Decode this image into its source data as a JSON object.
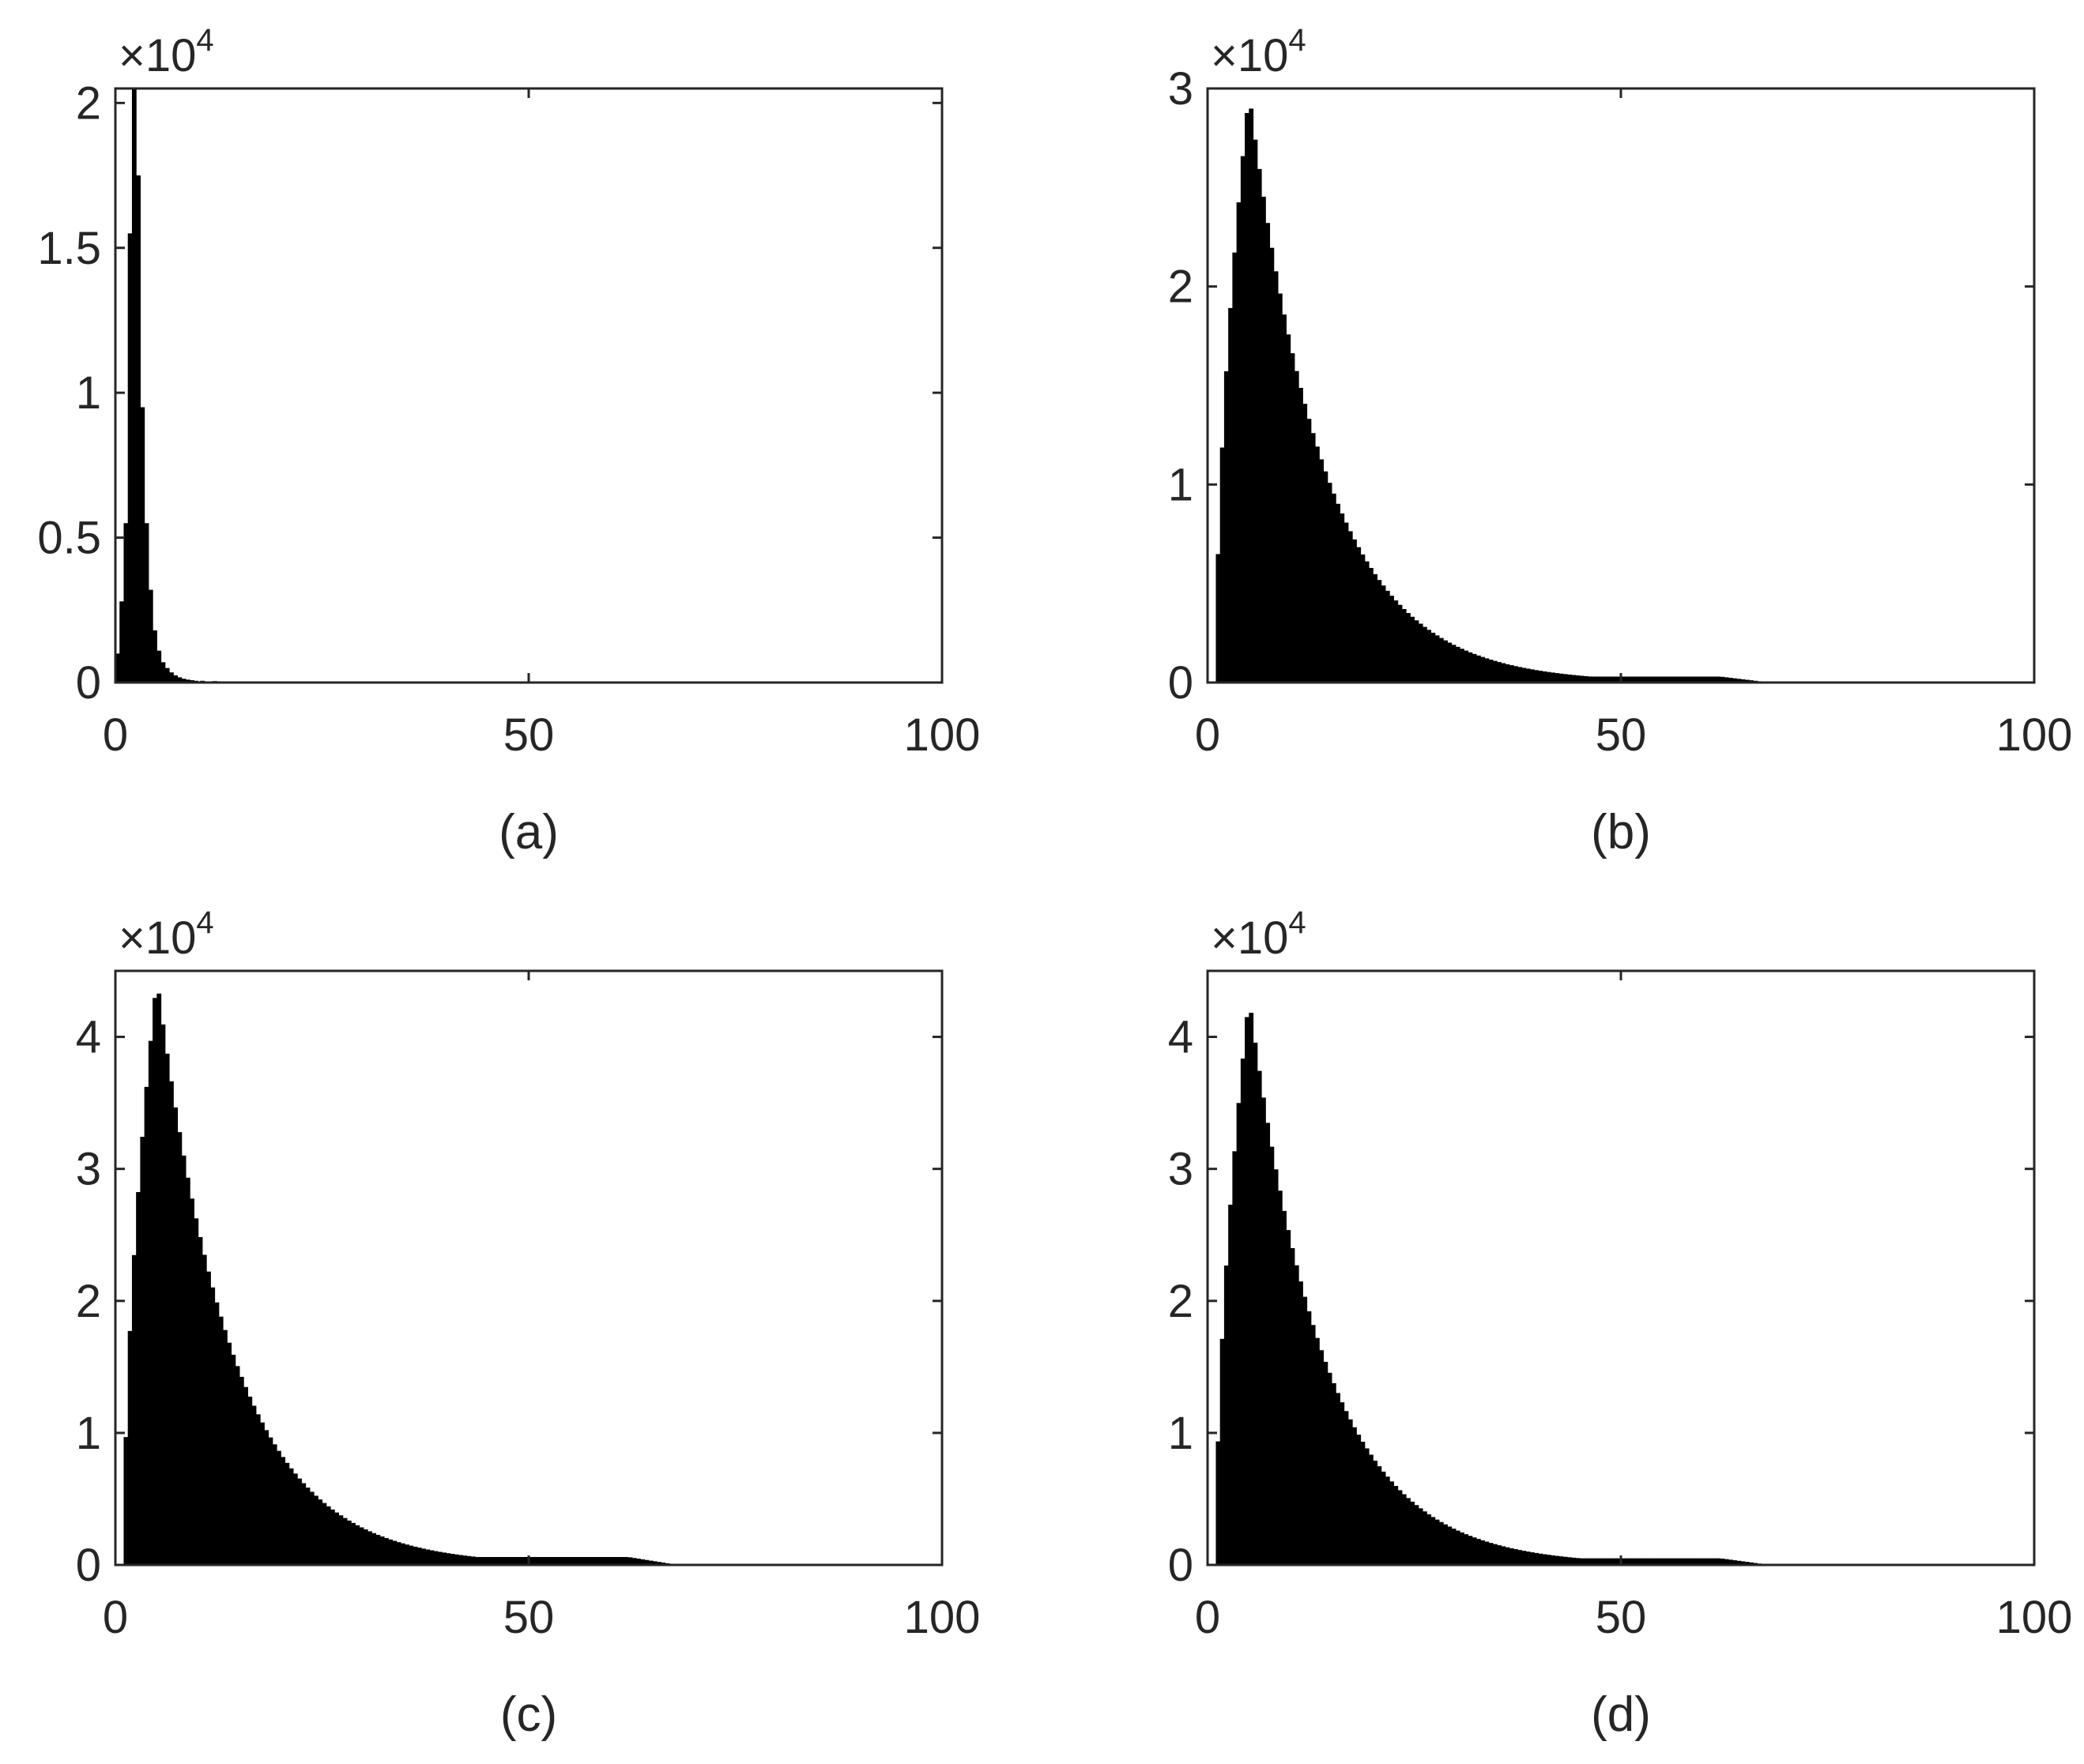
{
  "chart_data": [
    {
      "type": "bar",
      "panel": "(a)",
      "caption": "(a)",
      "multiplier": "×10",
      "multiplier_exp": "4",
      "xlim": [
        0,
        100
      ],
      "ylim": [
        0,
        2.05
      ],
      "xticks": [
        0,
        50,
        100
      ],
      "xtick_labels": [
        "0",
        "50",
        "100"
      ],
      "yticks": [
        0,
        0.5,
        1,
        1.5,
        2
      ],
      "ytick_labels": [
        "0",
        "0.5",
        "1",
        "1.5",
        "2"
      ],
      "grid": false,
      "bin_width": 0.5,
      "x": [
        0.25,
        0.75,
        1.25,
        1.75,
        2.25,
        2.75,
        3.25,
        3.75,
        4.25,
        4.75,
        5.25,
        5.75,
        6.25,
        6.75,
        7.25,
        7.75,
        8.25,
        8.75,
        9.25,
        9.75,
        10.5,
        12,
        14,
        17,
        21,
        26,
        32,
        40,
        50,
        60,
        70,
        80,
        90
      ],
      "values": [
        0.1,
        0.28,
        0.55,
        1.55,
        2.05,
        1.75,
        0.95,
        0.55,
        0.32,
        0.18,
        0.11,
        0.07,
        0.05,
        0.035,
        0.025,
        0.018,
        0.013,
        0.01,
        0.008,
        0.006,
        0.006,
        0.005,
        0.004,
        0.004,
        0.003,
        0.003,
        0.003,
        0.002,
        0.002,
        0.002,
        0.001,
        0.001,
        0.001
      ]
    },
    {
      "type": "bar",
      "panel": "(b)",
      "caption": "(b)",
      "multiplier": "×10",
      "multiplier_exp": "4",
      "xlim": [
        0,
        100
      ],
      "ylim": [
        0,
        3.0
      ],
      "xticks": [
        0,
        50,
        100
      ],
      "xtick_labels": [
        "0",
        "50",
        "100"
      ],
      "yticks": [
        0,
        1,
        2,
        3
      ],
      "ytick_labels": [
        "0",
        "1",
        "2",
        "3"
      ],
      "grid": false,
      "shape": {
        "peak_x": 5,
        "peak_value": 2.98,
        "lambda": 5,
        "min_value": 0.03
      }
    },
    {
      "type": "bar",
      "panel": "(c)",
      "caption": "(c)",
      "multiplier": "×10",
      "multiplier_exp": "4",
      "xlim": [
        0,
        100
      ],
      "ylim": [
        0,
        4.5
      ],
      "xticks": [
        0,
        50,
        100
      ],
      "xtick_labels": [
        "0",
        "50",
        "100"
      ],
      "yticks": [
        0,
        1,
        2,
        3,
        4
      ],
      "ytick_labels": [
        "0",
        "1",
        "2",
        "3",
        "4"
      ],
      "grid": false,
      "shape": {
        "peak_x": 5,
        "peak_value": 4.45,
        "lambda": 5,
        "min_value": 0.06
      }
    },
    {
      "type": "bar",
      "panel": "(d)",
      "caption": "(d)",
      "multiplier": "×10",
      "multiplier_exp": "4",
      "xlim": [
        0,
        100
      ],
      "ylim": [
        0,
        4.5
      ],
      "xticks": [
        0,
        50,
        100
      ],
      "xtick_labels": [
        "0",
        "50",
        "100"
      ],
      "yticks": [
        0,
        1,
        2,
        3,
        4
      ],
      "ytick_labels": [
        "0",
        "1",
        "2",
        "3",
        "4"
      ],
      "grid": false,
      "shape": {
        "peak_x": 5,
        "peak_value": 4.3,
        "lambda": 5,
        "min_value": 0.05
      }
    }
  ],
  "colors": {
    "bars": "#000000",
    "axes": "#262626",
    "background": "#ffffff"
  }
}
